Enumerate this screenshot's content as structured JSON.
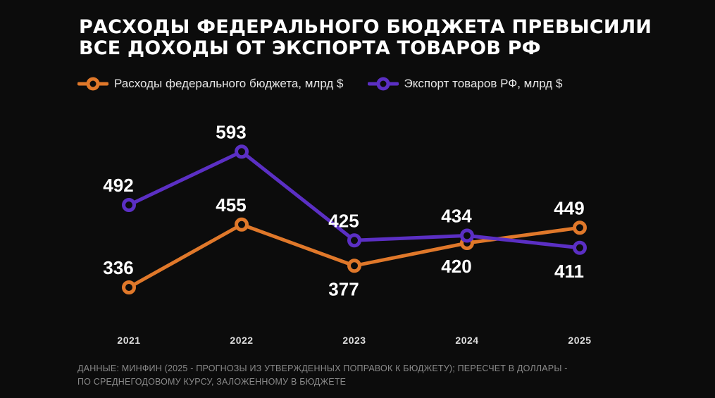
{
  "title": {
    "line1": "РАСХОДЫ ФЕДЕРАЛЬНОГО БЮДЖЕТА ПРЕВЫСИЛИ",
    "line2": "ВСЕ ДОХОДЫ ОТ ЭКСПОРТА ТОВАРОВ РФ"
  },
  "colors": {
    "background": "#0c0c0c",
    "orange": "#e0782a",
    "purple": "#5b2fc4",
    "label": "#ffffff",
    "tick": "#dddddd"
  },
  "source": {
    "line1": "ДАННЫЕ: МИНФИН (2025 - ПРОГНОЗЫ ИЗ УТВЕРЖДЕННЫХ ПОПРАВОК К БЮДЖЕТУ); ПЕРЕСЧЕТ В ДОЛЛАРЫ -",
    "line2": "ПО СРЕДНЕГОДОВОМУ КУРСУ, ЗАЛОЖЕННОМУ В БЮДЖЕТЕ"
  },
  "chart_data": {
    "type": "line",
    "categories": [
      "2021",
      "2022",
      "2023",
      "2024",
      "2025"
    ],
    "series": [
      {
        "name": "Расходы федерального бюджета, млрд $",
        "color": "#e0782a",
        "values": [
          336,
          455,
          377,
          420,
          449
        ],
        "labels": [
          "336",
          "455",
          "377",
          "420",
          "449"
        ],
        "label_positions": [
          "above",
          "above",
          "below",
          "below",
          "above"
        ]
      },
      {
        "name": "Экспорт товаров РФ, млрд $",
        "color": "#5b2fc4",
        "values": [
          492,
          593,
          425,
          434,
          411
        ],
        "labels": [
          "492",
          "593",
          "425",
          "434",
          "411"
        ],
        "label_positions": [
          "above",
          "above",
          "above",
          "above",
          "below"
        ]
      }
    ],
    "ylim": [
      280,
      640
    ],
    "grid": false,
    "legend": "top-left",
    "xlabel": "",
    "ylabel": ""
  }
}
